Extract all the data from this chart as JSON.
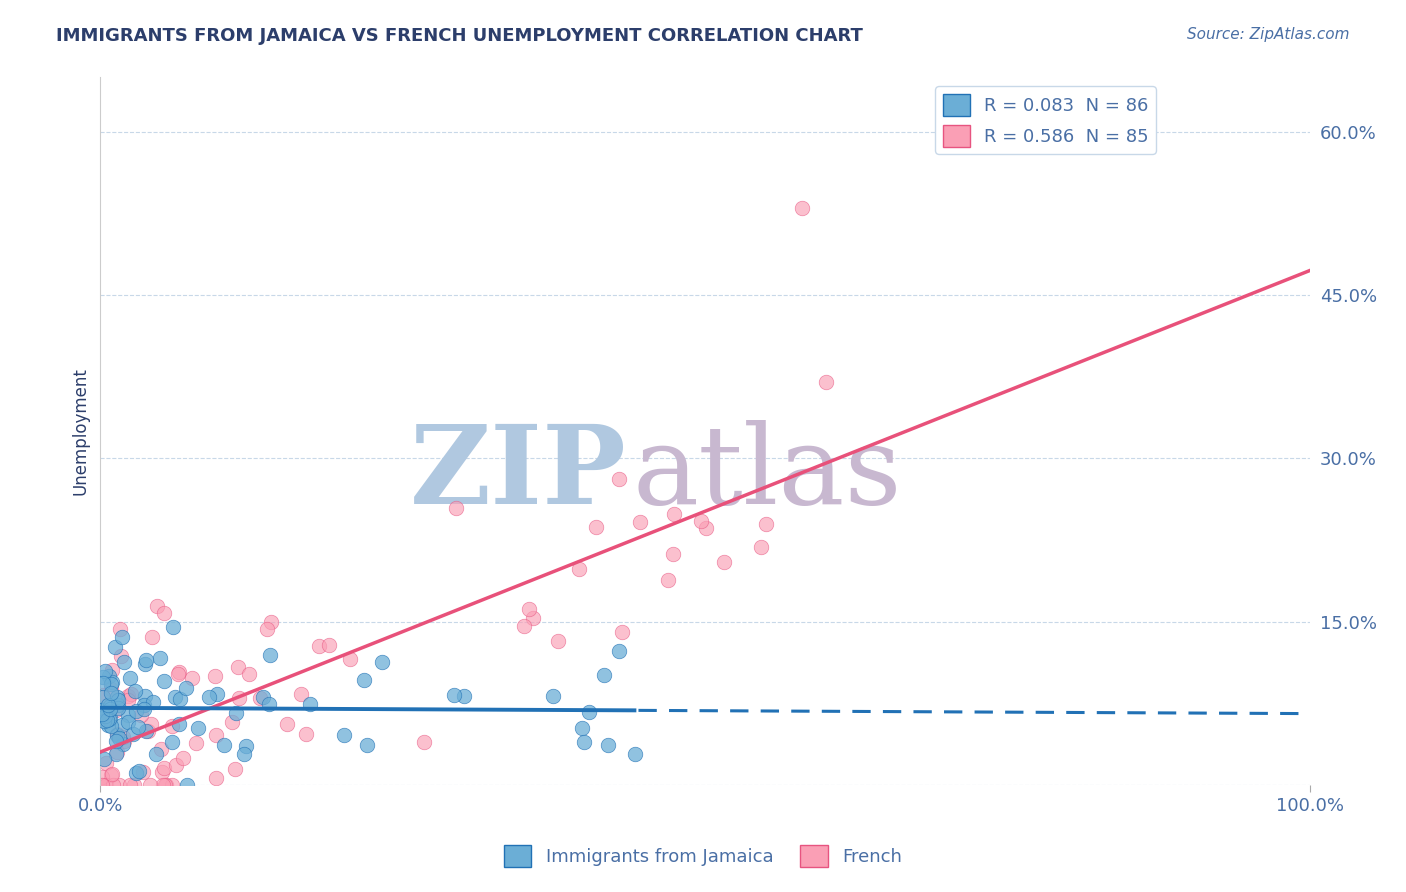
{
  "title": "IMMIGRANTS FROM JAMAICA VS FRENCH UNEMPLOYMENT CORRELATION CHART",
  "source_text": "Source: ZipAtlas.com",
  "ylabel": "Unemployment",
  "x_min": 0.0,
  "x_max": 1.0,
  "y_min": 0.0,
  "y_max": 0.65,
  "y_ticks": [
    0.0,
    0.15,
    0.3,
    0.45,
    0.6
  ],
  "y_tick_labels": [
    "",
    "15.0%",
    "30.0%",
    "45.0%",
    "60.0%"
  ],
  "legend_entry1": "R = 0.083  N = 86",
  "legend_entry2": "R = 0.586  N = 85",
  "legend_label1": "Immigrants from Jamaica",
  "legend_label2": "French",
  "blue_color": "#6baed6",
  "blue_dark": "#2171b5",
  "pink_color": "#fa9fb5",
  "pink_edge": "#e75480",
  "pink_line": "#e8517a",
  "watermark_zip": "ZIP",
  "watermark_atlas": "atlas",
  "watermark_color_zip": "#b0c8e0",
  "watermark_color_atlas": "#c8b8d0",
  "title_color": "#2c3e6b",
  "axis_label_color": "#4a6fa5",
  "background_color": "#ffffff",
  "grid_color": "#c8d8e8"
}
